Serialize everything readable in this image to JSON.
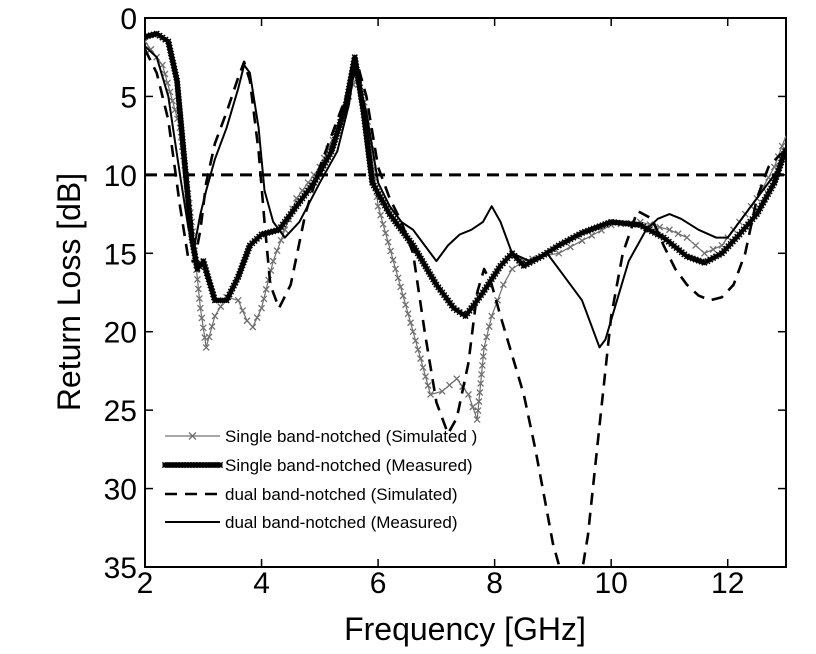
{
  "chart_data": {
    "type": "line",
    "title": "",
    "xlabel": "Frequency [GHz]",
    "ylabel": "Return Loss [dB]",
    "xlim": [
      2,
      13
    ],
    "ylim": [
      0,
      35
    ],
    "y_reversed": true,
    "grid": false,
    "legend_placement": "bottom-left",
    "x_ticks": [
      2,
      4,
      6,
      8,
      10,
      12
    ],
    "y_ticks": [
      0,
      5,
      10,
      15,
      20,
      25,
      30,
      35
    ],
    "reference_line": {
      "y": 10,
      "style": "dashed"
    },
    "series": [
      {
        "name": "Single band-notched (Simulated )",
        "style": "thin-line-x-markers",
        "color": "#707070",
        "x": [
          2.0,
          2.3,
          2.6,
          2.8,
          2.95,
          3.05,
          3.2,
          3.4,
          3.6,
          3.75,
          3.85,
          4.0,
          4.2,
          4.4,
          4.6,
          4.8,
          5.0,
          5.3,
          5.5,
          5.65,
          5.8,
          6.0,
          6.3,
          6.6,
          6.9,
          7.1,
          7.35,
          7.55,
          7.7,
          7.82,
          7.95,
          8.05,
          8.15,
          8.3,
          8.5,
          8.8,
          9.1,
          9.5,
          10.0,
          10.5,
          11.0,
          11.3,
          11.6,
          11.9,
          12.2,
          12.5,
          12.8,
          13.0
        ],
        "y": [
          1.5,
          3.0,
          7.0,
          13.0,
          18.5,
          21.0,
          19.0,
          17.8,
          18.0,
          19.3,
          19.7,
          18.5,
          15.5,
          13.5,
          11.5,
          10.5,
          9.5,
          7.2,
          5.0,
          3.5,
          6.0,
          12.0,
          16.0,
          20.0,
          24.0,
          23.8,
          23.0,
          24.0,
          25.6,
          21.0,
          19.0,
          18.0,
          17.0,
          16.0,
          15.5,
          15.2,
          15.0,
          14.2,
          13.2,
          13.0,
          13.5,
          14.0,
          15.0,
          14.5,
          13.0,
          11.5,
          9.5,
          7.5
        ]
      },
      {
        "name": "Single band-notched (Measured)",
        "style": "thick-line-markers",
        "color": "#000000",
        "x": [
          2.0,
          2.2,
          2.4,
          2.55,
          2.7,
          2.8,
          2.9,
          3.0,
          3.2,
          3.4,
          3.6,
          3.8,
          4.0,
          4.3,
          4.6,
          4.9,
          5.2,
          5.45,
          5.6,
          5.75,
          5.9,
          6.2,
          6.6,
          7.0,
          7.3,
          7.5,
          7.8,
          8.1,
          8.3,
          8.5,
          8.8,
          9.1,
          9.5,
          10.0,
          10.5,
          10.9,
          11.3,
          11.6,
          11.9,
          12.2,
          12.5,
          12.8,
          13.0
        ],
        "y": [
          1.2,
          1.0,
          1.5,
          4.0,
          10.0,
          14.0,
          16.0,
          15.5,
          18.0,
          18.0,
          16.5,
          14.5,
          13.8,
          13.5,
          12.0,
          10.5,
          8.5,
          5.5,
          2.5,
          6.0,
          10.5,
          12.5,
          14.5,
          17.0,
          18.5,
          19.0,
          17.5,
          15.8,
          15.0,
          15.8,
          15.2,
          14.5,
          13.7,
          13.0,
          13.2,
          14.0,
          15.2,
          15.6,
          15.0,
          13.8,
          12.5,
          10.5,
          8.3
        ]
      },
      {
        "name": "dual band-notched (Simulated)",
        "style": "dashed",
        "color": "#000000",
        "x": [
          2.0,
          2.2,
          2.4,
          2.6,
          2.75,
          2.85,
          2.95,
          3.05,
          3.2,
          3.4,
          3.6,
          3.7,
          3.8,
          3.95,
          4.05,
          4.15,
          4.3,
          4.5,
          4.75,
          5.0,
          5.3,
          5.5,
          5.65,
          5.8,
          6.0,
          6.2,
          6.4,
          6.6,
          6.8,
          7.0,
          7.2,
          7.35,
          7.55,
          7.7,
          7.82,
          7.95,
          8.1,
          8.3,
          8.5,
          8.7,
          8.85,
          9.0,
          9.15,
          9.4,
          9.6,
          9.8,
          10.0,
          10.2,
          10.45,
          10.7,
          10.9,
          11.1,
          11.3,
          11.5,
          11.7,
          11.9,
          12.1,
          12.3,
          12.5,
          12.7,
          12.9,
          13.0
        ],
        "y": [
          2.0,
          3.5,
          6.5,
          12.0,
          15.5,
          15.5,
          13.5,
          10.5,
          8.0,
          6.0,
          3.8,
          2.8,
          4.0,
          8.5,
          13.0,
          17.0,
          18.5,
          17.0,
          12.5,
          9.5,
          6.5,
          4.5,
          3.0,
          5.0,
          9.5,
          11.5,
          13.0,
          15.0,
          20.0,
          24.5,
          26.5,
          25.5,
          22.0,
          17.5,
          16.0,
          17.0,
          19.0,
          21.5,
          24.0,
          27.5,
          30.5,
          33.5,
          35.5,
          37.5,
          33.0,
          26.0,
          19.0,
          15.0,
          12.3,
          12.8,
          14.5,
          16.0,
          17.0,
          17.7,
          18.0,
          17.8,
          17.0,
          15.0,
          11.5,
          9.5,
          8.7,
          8.5
        ]
      },
      {
        "name": "dual band-notched (Measured)",
        "style": "solid",
        "color": "#000000",
        "x": [
          2.0,
          2.2,
          2.4,
          2.6,
          2.75,
          2.85,
          2.95,
          3.05,
          3.2,
          3.4,
          3.6,
          3.7,
          3.8,
          3.95,
          4.05,
          4.2,
          4.4,
          4.65,
          5.0,
          5.3,
          5.5,
          5.6,
          5.8,
          6.0,
          6.2,
          6.4,
          6.6,
          6.8,
          7.0,
          7.2,
          7.4,
          7.6,
          7.8,
          7.95,
          8.1,
          8.3,
          8.6,
          8.9,
          9.2,
          9.5,
          9.7,
          9.8,
          9.9,
          10.1,
          10.3,
          10.6,
          10.8,
          11.0,
          11.2,
          11.5,
          11.8,
          12.0,
          12.3,
          12.6,
          12.9,
          13.0
        ],
        "y": [
          1.8,
          2.5,
          5.0,
          10.0,
          13.5,
          14.5,
          12.5,
          11.0,
          9.0,
          7.0,
          4.5,
          3.0,
          3.5,
          7.0,
          11.0,
          13.0,
          14.0,
          13.0,
          10.5,
          8.5,
          5.5,
          3.0,
          6.0,
          10.5,
          12.0,
          13.0,
          13.5,
          14.5,
          15.5,
          14.5,
          13.8,
          13.5,
          13.0,
          12.0,
          13.0,
          15.0,
          15.5,
          15.0,
          16.5,
          18.0,
          20.0,
          21.0,
          20.5,
          18.0,
          15.5,
          13.5,
          12.8,
          12.5,
          12.8,
          13.5,
          14.0,
          14.0,
          12.5,
          11.0,
          9.5,
          8.5
        ]
      }
    ]
  }
}
